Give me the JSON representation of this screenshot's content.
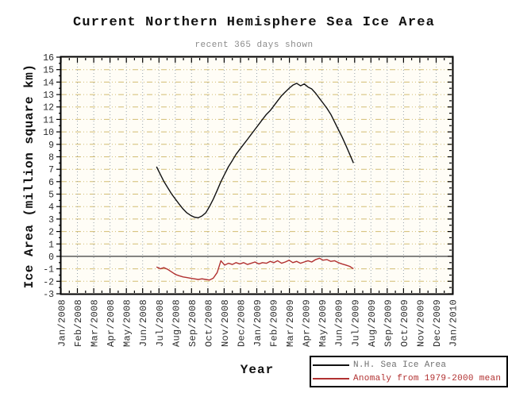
{
  "header": {
    "title": "Current Northern Hemisphere Sea Ice Area",
    "subtitle": "recent 365 days shown"
  },
  "colors": {
    "page_bg": "#ffffff",
    "plot_bg": "#fffdf6",
    "frame": "#000000",
    "grid_horizontal": "#d2bd72",
    "grid_vertical": "#9aa4ac",
    "zero_line": "#3a3a3a",
    "tick_text": "#2b2b2b",
    "title_text": "#111111",
    "subtitle_text": "#8a8a8a"
  },
  "legend": {
    "items": [
      {
        "series": 0,
        "text_color": "#707070"
      },
      {
        "series": 1,
        "text_color": "#b13030"
      }
    ]
  },
  "chart_data": {
    "type": "line",
    "title": "Current Northern Hemisphere Sea Ice Area",
    "subtitle": "recent 365 days shown",
    "xlabel": "Year",
    "ylabel": "Ice Area (million square km)",
    "x_unit": "months since Jan/2008",
    "xlim": [
      0,
      24
    ],
    "ylim": [
      -3,
      16
    ],
    "grid": true,
    "legend_position": "bottom-right",
    "x_tick_labels": [
      "Jan/2008",
      "Feb/2008",
      "Mar/2008",
      "Apr/2008",
      "May/2008",
      "Jun/2008",
      "Jul/2008",
      "Aug/2008",
      "Sep/2008",
      "Oct/2008",
      "Nov/2008",
      "Dec/2008",
      "Jan/2009",
      "Feb/2009",
      "Mar/2009",
      "Apr/2009",
      "May/2009",
      "Jun/2009",
      "Jul/2009",
      "Aug/2009",
      "Sep/2009",
      "Oct/2009",
      "Nov/2009",
      "Dec/2009",
      "Jan/2010"
    ],
    "y_tick_labels": [
      "-3",
      "-2",
      "-1",
      "0",
      "1",
      "2",
      "3",
      "4",
      "5",
      "6",
      "7",
      "8",
      "9",
      "10",
      "11",
      "12",
      "13",
      "14",
      "15",
      "16"
    ],
    "zero_line_at": 0,
    "x": [
      5.85,
      6.08,
      6.31,
      6.55,
      6.78,
      7.01,
      7.24,
      7.48,
      7.71,
      7.94,
      8.17,
      8.41,
      8.64,
      8.87,
      9.1,
      9.33,
      9.57,
      9.8,
      10.03,
      10.26,
      10.5,
      10.73,
      10.96,
      11.19,
      11.43,
      11.66,
      11.89,
      12.12,
      12.35,
      12.59,
      12.82,
      13.05,
      13.28,
      13.52,
      13.75,
      13.98,
      14.21,
      14.45,
      14.68,
      14.91,
      15.14,
      15.37,
      15.61,
      15.84,
      16.07,
      16.3,
      16.54,
      16.77,
      17.0,
      17.23,
      17.47,
      17.7,
      17.93
    ],
    "series": [
      {
        "name": "N.H. Sea Ice Area",
        "color": "#111111",
        "values": [
          7.2,
          6.6,
          6.0,
          5.5,
          5.0,
          4.6,
          4.2,
          3.8,
          3.5,
          3.3,
          3.15,
          3.1,
          3.25,
          3.5,
          4.0,
          4.6,
          5.3,
          6.0,
          6.6,
          7.2,
          7.7,
          8.2,
          8.6,
          9.0,
          9.4,
          9.8,
          10.2,
          10.6,
          11.0,
          11.4,
          11.7,
          12.1,
          12.5,
          12.9,
          13.2,
          13.5,
          13.75,
          13.9,
          13.7,
          13.85,
          13.6,
          13.45,
          13.1,
          12.7,
          12.3,
          11.9,
          11.4,
          10.8,
          10.2,
          9.6,
          8.9,
          8.2,
          7.5
        ]
      },
      {
        "name": "Anomaly from 1979-2000 mean",
        "color": "#b13030",
        "values": [
          -0.85,
          -1.0,
          -0.9,
          -1.05,
          -1.25,
          -1.45,
          -1.55,
          -1.65,
          -1.7,
          -1.75,
          -1.8,
          -1.85,
          -1.8,
          -1.85,
          -1.9,
          -1.75,
          -1.3,
          -0.35,
          -0.7,
          -0.55,
          -0.65,
          -0.5,
          -0.6,
          -0.5,
          -0.65,
          -0.55,
          -0.45,
          -0.6,
          -0.5,
          -0.55,
          -0.4,
          -0.5,
          -0.35,
          -0.55,
          -0.45,
          -0.3,
          -0.5,
          -0.4,
          -0.55,
          -0.45,
          -0.35,
          -0.45,
          -0.25,
          -0.15,
          -0.3,
          -0.25,
          -0.4,
          -0.35,
          -0.5,
          -0.6,
          -0.7,
          -0.8,
          -1.0
        ]
      }
    ]
  }
}
